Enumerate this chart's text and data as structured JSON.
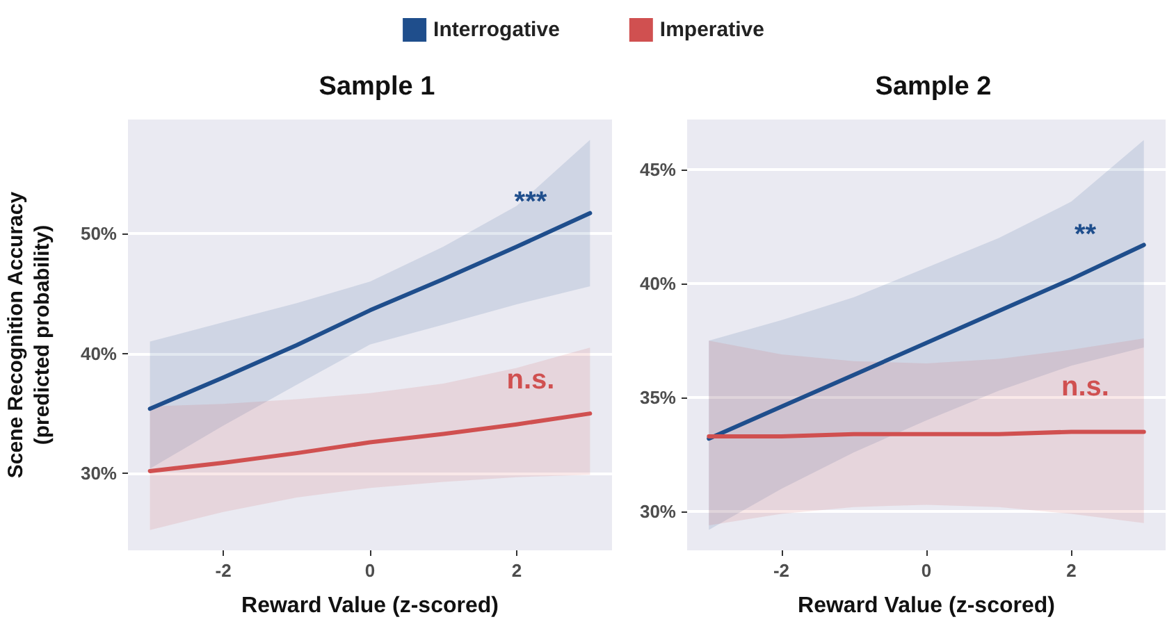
{
  "chart_data": [
    {
      "type": "line",
      "title": "Sample 1",
      "xlabel": "Reward Value (z-scored)",
      "ylabel": "Scene Recognition Accuracy\n(predicted probability)",
      "legend": "top",
      "grid": "y",
      "marker": "none",
      "line_style": "solid",
      "x": [
        -3,
        -2,
        -1,
        0,
        1,
        2,
        3
      ],
      "xlim": [
        -3.3,
        3.3
      ],
      "xticks": [
        -2,
        0,
        2
      ],
      "ylim": [
        23.6,
        59.5
      ],
      "yticks": [
        {
          "value": 30,
          "label": "30%"
        },
        {
          "value": 40,
          "label": "40%"
        },
        {
          "value": 50,
          "label": "50%"
        }
      ],
      "series": [
        {
          "name": "Interrogative",
          "color": "#1f4e8c",
          "values": [
            35.4,
            38.0,
            40.7,
            43.6,
            46.2,
            48.9,
            51.7
          ],
          "lower": [
            30.4,
            34.0,
            37.4,
            40.75,
            42.4,
            44.1,
            45.6
          ],
          "upper": [
            41.0,
            42.6,
            44.2,
            46.0,
            48.9,
            52.3,
            57.8
          ]
        },
        {
          "name": "Imperative",
          "color": "#d05050",
          "values": [
            30.2,
            30.9,
            31.7,
            32.6,
            33.3,
            34.1,
            35.0
          ],
          "lower": [
            25.3,
            26.8,
            28.0,
            28.8,
            29.3,
            29.7,
            29.9
          ],
          "upper": [
            35.6,
            35.8,
            36.2,
            36.7,
            37.5,
            38.8,
            40.5
          ]
        }
      ],
      "annotations": [
        "***",
        "n.s."
      ]
    },
    {
      "type": "line",
      "title": "Sample 2",
      "xlabel": "Reward Value (z-scored)",
      "grid": "y",
      "marker": "none",
      "line_style": "solid",
      "x": [
        -3,
        -2,
        -1,
        0,
        1,
        2,
        3
      ],
      "xlim": [
        -3.3,
        3.3
      ],
      "xticks": [
        -2,
        0,
        2
      ],
      "ylim": [
        28.3,
        47.2
      ],
      "yticks": [
        {
          "value": 30,
          "label": "30%"
        },
        {
          "value": 35,
          "label": "35%"
        },
        {
          "value": 40,
          "label": "40%"
        },
        {
          "value": 45,
          "label": "45%"
        }
      ],
      "series": [
        {
          "color": "#1f4e8c",
          "values": [
            33.2,
            34.6,
            36.0,
            37.4,
            38.8,
            40.2,
            41.7
          ],
          "lower": [
            29.2,
            31.0,
            32.6,
            34.0,
            35.3,
            36.4,
            37.2
          ],
          "upper": [
            37.5,
            38.4,
            39.4,
            40.7,
            42.0,
            43.6,
            46.3
          ]
        },
        {
          "color": "#d05050",
          "values": [
            33.3,
            33.3,
            33.4,
            33.4,
            33.4,
            33.5,
            33.5
          ],
          "lower": [
            29.4,
            29.9,
            30.2,
            30.3,
            30.2,
            29.9,
            29.5
          ],
          "upper": [
            37.5,
            36.9,
            36.6,
            36.5,
            36.7,
            37.1,
            37.6
          ]
        }
      ],
      "annotations": [
        "**",
        "n.s."
      ]
    }
  ]
}
